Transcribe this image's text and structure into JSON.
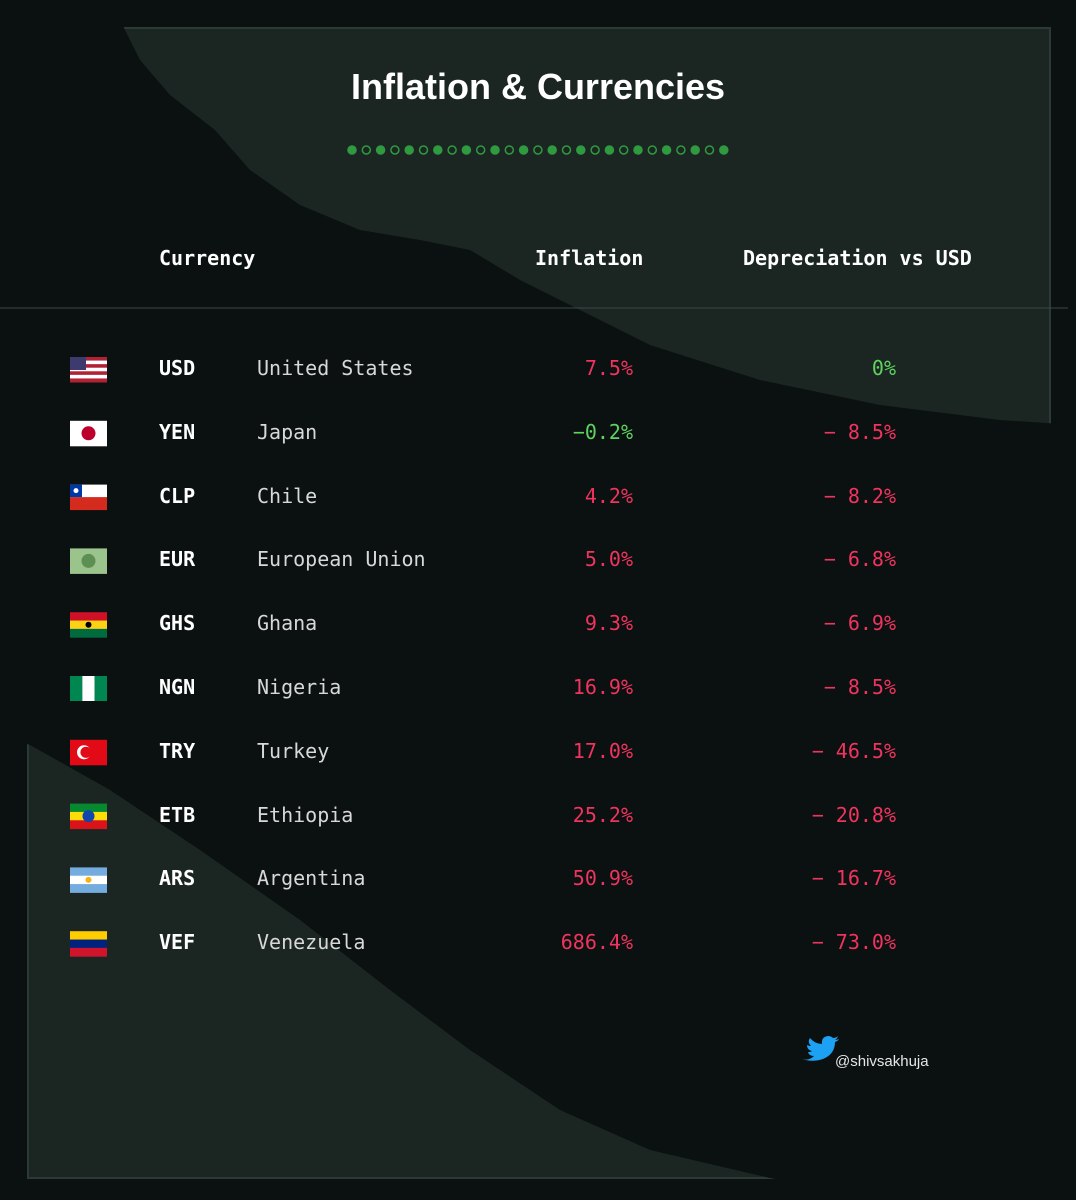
{
  "header": {
    "title": "Inflation & Currencies"
  },
  "table": {
    "columns": [
      "Currency",
      "Inflation",
      "Depreciation vs USD"
    ],
    "rows": [
      [
        "USD",
        "United States",
        "7.5%",
        "0%"
      ],
      [
        "YEN",
        "Japan",
        "−0.2%",
        "− 8.5%"
      ],
      [
        "CLP",
        "Chile",
        "4.2%",
        "− 8.2%"
      ],
      [
        "EUR",
        "European Union",
        "5.0%",
        "− 6.8%"
      ],
      [
        "GHS",
        "Ghana",
        "9.3%",
        "− 6.9%"
      ],
      [
        "NGN",
        "Nigeria",
        "16.9%",
        "− 8.5%"
      ],
      [
        "TRY",
        "Turkey",
        "17.0%",
        "− 46.5%"
      ],
      [
        "ETB",
        "Ethiopia",
        "25.2%",
        "− 20.8%"
      ],
      [
        "ARS",
        "Argentina",
        "50.9%",
        "− 16.7%"
      ],
      [
        "VEF",
        "Venezuela",
        "686.4%",
        "− 73.0%"
      ]
    ]
  },
  "footer": {
    "handle": "@shivsakhuja"
  }
}
